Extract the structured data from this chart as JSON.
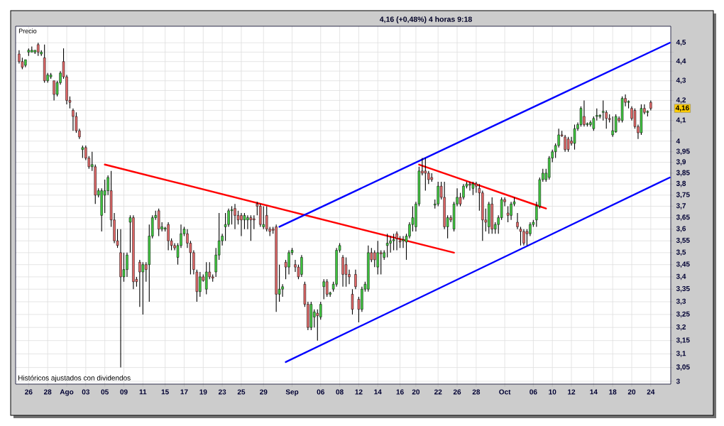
{
  "chart_data": {
    "type": "candlestick",
    "title": "4,16 (+0,48%)  4 horas  9:18",
    "ylabel": "Precio",
    "annotations": [
      "4,16",
      "Históricos ajustados con dividendos"
    ],
    "log": "y",
    "grid": true,
    "categories": [
      null,
      null,
      null,
      "26",
      null,
      null,
      null,
      null,
      null,
      "28",
      null,
      null,
      null,
      null,
      null,
      "Ago",
      null,
      null,
      null,
      null,
      null,
      "03",
      null,
      null,
      null,
      null,
      null,
      "05",
      null,
      null,
      null,
      null,
      null,
      "09",
      null,
      null,
      null,
      null,
      null,
      "11",
      null,
      null,
      null,
      null,
      null,
      null,
      "15",
      null,
      null,
      null,
      null,
      null,
      "17",
      null,
      null,
      null,
      null,
      null,
      "19",
      null,
      null,
      null,
      null,
      null,
      "23",
      null,
      null,
      null,
      null,
      null,
      "25",
      null,
      null,
      null,
      null,
      null,
      null,
      "29",
      null,
      null,
      null,
      null,
      null,
      null,
      null,
      null,
      "Sep",
      null,
      null,
      null,
      null,
      null,
      null,
      null,
      null,
      "06",
      null,
      null,
      null,
      null,
      null,
      "08",
      null,
      null,
      null,
      null,
      null,
      "12",
      null,
      null,
      null,
      null,
      null,
      "14",
      null,
      null,
      null,
      null,
      null,
      null,
      "16",
      null,
      null,
      null,
      null,
      "20",
      null,
      null,
      null,
      null,
      null,
      null,
      "22",
      null,
      null,
      null,
      null,
      null,
      "26",
      null,
      null,
      null,
      null,
      null,
      "28",
      null,
      null,
      null,
      null,
      null,
      null,
      null,
      null,
      "Oct",
      null,
      null,
      null,
      null,
      null,
      null,
      null,
      null,
      "06",
      null,
      null,
      null,
      null,
      null,
      "10",
      null,
      null,
      null,
      null,
      null,
      "12",
      null,
      null,
      null,
      null,
      null,
      null,
      "14",
      null,
      null,
      null,
      null,
      null,
      "18",
      null,
      null,
      null,
      null,
      null,
      "20",
      null,
      null,
      null,
      null,
      null,
      "24",
      null,
      null,
      null,
      null,
      null,
      null
    ],
    "ylim": [
      2.99,
      4.59
    ],
    "yticks": [
      3,
      {
        "value": 3.05,
        "label": "3,05"
      },
      {
        "value": 3.1,
        "label": "3,1"
      },
      {
        "value": 3.15,
        "label": "3,15"
      },
      {
        "value": 3.2,
        "label": "3,2"
      },
      {
        "value": 3.25,
        "label": "3,25"
      },
      {
        "value": 3.3,
        "label": "3,3"
      },
      {
        "value": 3.35,
        "label": "3,35"
      },
      {
        "value": 3.4,
        "label": "3,4"
      },
      {
        "value": 3.45,
        "label": "3,45"
      },
      {
        "value": 3.5,
        "label": "3,5"
      },
      {
        "value": 3.55,
        "label": "3,55"
      },
      {
        "value": 3.6,
        "label": "3,6"
      },
      {
        "value": 3.65,
        "label": "3,65"
      },
      {
        "value": 3.7,
        "label": "3,7"
      },
      {
        "value": 3.75,
        "label": "3,75"
      },
      {
        "value": 3.8,
        "label": "3,8"
      },
      {
        "value": 3.85,
        "label": "3,85"
      },
      {
        "value": 3.9,
        "label": "3,9"
      },
      {
        "value": 3.95,
        "label": "3,95"
      },
      4,
      {
        "value": 4.05,
        "label": null
      },
      {
        "value": 4.1,
        "label": "4,1"
      },
      {
        "value": 4.15,
        "label": null
      },
      {
        "value": 4.2,
        "label": "4,2"
      },
      {
        "value": 4.25,
        "label": null
      },
      {
        "value": 4.3,
        "label": "4,3"
      },
      {
        "value": 4.35,
        "label": null
      },
      {
        "value": 4.4,
        "label": "4,4"
      },
      {
        "value": 4.45,
        "label": null
      },
      {
        "value": 4.5,
        "label": "4,5"
      }
    ],
    "ohlc": [
      [
        4.44,
        4.46,
        4.39,
        4.4
      ],
      [
        4.4,
        4.42,
        4.36,
        4.37
      ],
      [
        4.38,
        4.41,
        4.37,
        4.41
      ],
      [
        4.45,
        4.47,
        4.43,
        4.46
      ],
      [
        4.45,
        4.48,
        4.45,
        4.46
      ],
      [
        4.45,
        4.46,
        4.44,
        4.46
      ],
      [
        4.49,
        4.5,
        4.43,
        4.45
      ],
      [
        4.44,
        4.46,
        4.43,
        4.45
      ],
      [
        4.42,
        4.49,
        4.29,
        4.3
      ],
      [
        4.3,
        4.34,
        4.29,
        4.33
      ],
      [
        4.32,
        4.34,
        4.31,
        4.33
      ],
      [
        4.3,
        4.3,
        4.2,
        4.23
      ],
      [
        4.23,
        4.3,
        4.22,
        4.29
      ],
      [
        4.29,
        4.35,
        4.28,
        4.34
      ],
      [
        4.4,
        4.47,
        4.31,
        4.32
      ],
      [
        4.32,
        4.33,
        4.18,
        4.2
      ],
      [
        4.2,
        4.22,
        4.16,
        4.19
      ],
      [
        4.15,
        4.16,
        4.05,
        4.12
      ],
      [
        4.12,
        4.14,
        4.04,
        4.05
      ],
      [
        4.05,
        4.06,
        4.01,
        4.02
      ],
      [
        3.96,
        3.98,
        3.92,
        3.97
      ],
      [
        3.97,
        3.98,
        3.91,
        3.92
      ],
      [
        3.92,
        3.93,
        3.87,
        3.88
      ],
      [
        3.88,
        3.95,
        3.86,
        3.89
      ],
      [
        3.88,
        3.89,
        3.71,
        3.75
      ],
      [
        3.75,
        3.78,
        3.74,
        3.77
      ],
      [
        3.66,
        3.78,
        3.59,
        3.77
      ],
      [
        3.75,
        3.82,
        3.67,
        3.77
      ],
      [
        3.77,
        3.84,
        3.75,
        3.83
      ],
      [
        3.77,
        3.86,
        3.61,
        3.64
      ],
      [
        3.64,
        3.67,
        3.54,
        3.55
      ],
      [
        3.55,
        3.6,
        3.52,
        3.53
      ],
      [
        3.5,
        3.6,
        3.05,
        3.4
      ],
      [
        3.4,
        3.5,
        3.38,
        3.43
      ],
      [
        3.43,
        3.5,
        3.4,
        3.49
      ],
      [
        3.63,
        3.66,
        3.5,
        3.65
      ],
      [
        3.65,
        3.66,
        3.35,
        3.38
      ],
      [
        3.39,
        3.4,
        3.36,
        3.38
      ],
      [
        3.46,
        3.47,
        3.28,
        3.42
      ],
      [
        3.42,
        3.46,
        3.25,
        3.45
      ],
      [
        3.45,
        3.46,
        3.38,
        3.43
      ],
      [
        3.45,
        3.62,
        3.3,
        3.57
      ],
      [
        3.57,
        3.66,
        3.56,
        3.65
      ],
      [
        3.65,
        3.68,
        3.64,
        3.66
      ],
      [
        3.68,
        3.69,
        3.57,
        3.6
      ],
      [
        3.6,
        3.63,
        3.59,
        3.61
      ],
      [
        3.6,
        3.61,
        3.59,
        3.605
      ],
      [
        3.62,
        3.63,
        3.51,
        3.55
      ],
      [
        3.55,
        3.56,
        3.51,
        3.53
      ],
      [
        3.53,
        3.54,
        3.51,
        3.52
      ],
      [
        3.48,
        3.54,
        3.45,
        3.53
      ],
      [
        3.53,
        3.62,
        3.52,
        3.58
      ],
      [
        3.58,
        3.61,
        3.57,
        3.6
      ],
      [
        3.58,
        3.6,
        3.52,
        3.54
      ],
      [
        3.54,
        3.55,
        3.41,
        3.5
      ],
      [
        3.5,
        3.51,
        3.41,
        3.43
      ],
      [
        3.42,
        3.43,
        3.3,
        3.34
      ],
      [
        3.34,
        3.42,
        3.32,
        3.4
      ],
      [
        3.4,
        3.41,
        3.38,
        3.385
      ],
      [
        3.35,
        3.46,
        3.33,
        3.42
      ],
      [
        3.42,
        3.46,
        3.39,
        3.4
      ],
      [
        3.4,
        3.41,
        3.38,
        3.395
      ],
      [
        3.42,
        3.52,
        3.4,
        3.49
      ],
      [
        3.49,
        3.67,
        3.47,
        3.55
      ],
      [
        3.55,
        3.58,
        3.53,
        3.57
      ],
      [
        3.61,
        3.67,
        3.55,
        3.62
      ],
      [
        3.62,
        3.69,
        3.61,
        3.68
      ],
      [
        3.68,
        3.7,
        3.62,
        3.685
      ],
      [
        3.69,
        3.71,
        3.6,
        3.66
      ],
      [
        3.66,
        3.68,
        3.62,
        3.64
      ],
      [
        3.66,
        3.67,
        3.57,
        3.64
      ],
      [
        3.64,
        3.67,
        3.6,
        3.66
      ],
      [
        3.64,
        3.66,
        3.6,
        3.65
      ],
      [
        3.65,
        3.66,
        3.55,
        3.64
      ],
      [
        3.645,
        3.66,
        3.6,
        3.64
      ],
      [
        3.71,
        3.72,
        3.66,
        3.7
      ],
      [
        3.7,
        3.71,
        3.61,
        3.62
      ],
      [
        3.61,
        3.7,
        3.6,
        3.62
      ],
      [
        3.66,
        3.7,
        3.59,
        3.6
      ],
      [
        3.6,
        3.61,
        3.57,
        3.59
      ],
      [
        3.6,
        3.61,
        3.58,
        3.595
      ],
      [
        3.61,
        3.62,
        3.26,
        3.33
      ],
      [
        3.33,
        3.45,
        3.3,
        3.35
      ],
      [
        3.35,
        3.37,
        3.32,
        3.36
      ],
      [
        3.46,
        3.47,
        3.39,
        3.44
      ],
      [
        3.44,
        3.51,
        3.41,
        3.5
      ],
      [
        3.5,
        3.52,
        3.49,
        3.51
      ],
      [
        3.45,
        3.47,
        3.42,
        3.44
      ],
      [
        3.44,
        3.45,
        3.39,
        3.4
      ],
      [
        3.41,
        3.49,
        3.4,
        3.48
      ],
      [
        3.37,
        3.38,
        3.28,
        3.29
      ],
      [
        3.29,
        3.3,
        3.19,
        3.2
      ],
      [
        3.2,
        3.3,
        3.19,
        3.29
      ],
      [
        3.24,
        3.27,
        3.2,
        3.26
      ],
      [
        3.255,
        3.27,
        3.15,
        3.245
      ],
      [
        3.24,
        3.3,
        3.23,
        3.29
      ],
      [
        3.36,
        3.39,
        3.31,
        3.38
      ],
      [
        3.38,
        3.39,
        3.32,
        3.33
      ],
      [
        3.33,
        3.34,
        3.32,
        3.335
      ],
      [
        3.35,
        3.38,
        3.34,
        3.37
      ],
      [
        3.37,
        3.52,
        3.36,
        3.51
      ],
      [
        3.51,
        3.54,
        3.5,
        3.53
      ],
      [
        3.48,
        3.49,
        3.36,
        3.41
      ],
      [
        3.45,
        3.48,
        3.36,
        3.41
      ],
      [
        3.41,
        3.43,
        3.37,
        3.4
      ],
      [
        3.33,
        3.35,
        3.25,
        3.27
      ],
      [
        3.41,
        3.43,
        3.35,
        3.36
      ],
      [
        3.31,
        3.32,
        3.22,
        3.27
      ],
      [
        3.27,
        3.36,
        3.26,
        3.35
      ],
      [
        3.35,
        3.38,
        3.34,
        3.37
      ],
      [
        3.35,
        3.53,
        3.34,
        3.5
      ],
      [
        3.5,
        3.52,
        3.46,
        3.47
      ],
      [
        3.5,
        3.51,
        3.44,
        3.47
      ],
      [
        3.44,
        3.55,
        3.41,
        3.5
      ],
      [
        3.5,
        3.51,
        3.41,
        3.495
      ],
      [
        3.48,
        3.51,
        3.47,
        3.5
      ],
      [
        3.53,
        3.58,
        3.48,
        3.54
      ],
      [
        3.54,
        3.57,
        3.5,
        3.55
      ],
      [
        3.55,
        3.58,
        3.51,
        3.555
      ],
      [
        3.58,
        3.59,
        3.51,
        3.56
      ],
      [
        3.55,
        3.57,
        3.52,
        3.545
      ],
      [
        3.55,
        3.57,
        3.52,
        3.555
      ],
      [
        3.545,
        3.58,
        3.47,
        3.57
      ],
      [
        3.57,
        3.63,
        3.56,
        3.62
      ],
      [
        3.62,
        3.7,
        3.59,
        3.65
      ],
      [
        3.61,
        3.72,
        3.59,
        3.71
      ],
      [
        3.71,
        3.88,
        3.7,
        3.86
      ],
      [
        3.86,
        3.92,
        3.84,
        3.85
      ],
      [
        3.86,
        3.92,
        3.77,
        3.85
      ],
      [
        3.85,
        3.86,
        3.8,
        3.82
      ],
      [
        3.83,
        3.85,
        3.81,
        3.82
      ],
      [
        3.705,
        3.73,
        3.69,
        3.71
      ],
      [
        3.71,
        3.81,
        3.7,
        3.79
      ],
      [
        3.79,
        3.81,
        3.73,
        3.74
      ],
      [
        3.74,
        3.81,
        3.6,
        3.61
      ],
      [
        3.61,
        3.66,
        3.56,
        3.65
      ],
      [
        3.65,
        3.66,
        3.63,
        3.64
      ],
      [
        3.6,
        3.72,
        3.59,
        3.71
      ],
      [
        3.71,
        3.78,
        3.7,
        3.74
      ],
      [
        3.74,
        3.76,
        3.7,
        3.71
      ],
      [
        3.74,
        3.8,
        3.73,
        3.79
      ],
      [
        3.79,
        3.81,
        3.78,
        3.8
      ],
      [
        3.8,
        3.81,
        3.77,
        3.795
      ],
      [
        3.78,
        3.81,
        3.75,
        3.8
      ],
      [
        3.8,
        3.81,
        3.76,
        3.79
      ],
      [
        3.78,
        3.8,
        3.68,
        3.76
      ],
      [
        3.76,
        3.77,
        3.55,
        3.64
      ],
      [
        3.64,
        3.69,
        3.59,
        3.63
      ],
      [
        3.61,
        3.72,
        3.58,
        3.71
      ],
      [
        3.71,
        3.74,
        3.58,
        3.6
      ],
      [
        3.6,
        3.63,
        3.58,
        3.62
      ],
      [
        3.62,
        3.66,
        3.58,
        3.65
      ],
      [
        3.65,
        3.74,
        3.64,
        3.73
      ],
      [
        3.73,
        3.74,
        3.7,
        3.72
      ],
      [
        3.67,
        3.7,
        3.63,
        3.66
      ],
      [
        3.66,
        3.72,
        3.64,
        3.71
      ],
      [
        3.71,
        3.74,
        3.7,
        3.72
      ],
      [
        3.63,
        3.67,
        3.6,
        3.61
      ],
      [
        3.6,
        3.61,
        3.53,
        3.59
      ],
      [
        3.59,
        3.6,
        3.53,
        3.54
      ],
      [
        3.59,
        3.6,
        3.53,
        3.58
      ],
      [
        3.58,
        3.63,
        3.57,
        3.62
      ],
      [
        3.62,
        3.64,
        3.61,
        3.63
      ],
      [
        3.64,
        3.72,
        3.61,
        3.7
      ],
      [
        3.7,
        3.83,
        3.69,
        3.82
      ],
      [
        3.82,
        3.87,
        3.81,
        3.85
      ],
      [
        3.82,
        3.87,
        3.81,
        3.85
      ],
      [
        3.83,
        3.93,
        3.82,
        3.92
      ],
      [
        3.92,
        3.96,
        3.9,
        3.95
      ],
      [
        3.95,
        3.99,
        3.92,
        3.98
      ],
      [
        3.98,
        4.06,
        3.97,
        4.03
      ],
      [
        4.03,
        4.05,
        4.02,
        4.025
      ],
      [
        4.02,
        4.03,
        3.95,
        3.96
      ],
      [
        4.01,
        4.02,
        3.95,
        3.96
      ],
      [
        4.0,
        4.02,
        3.98,
        3.99
      ],
      [
        3.99,
        4.08,
        3.96,
        4.06
      ],
      [
        4.06,
        4.09,
        4.05,
        4.08
      ],
      [
        4.08,
        4.17,
        4.07,
        4.16
      ],
      [
        4.12,
        4.2,
        4.07,
        4.08
      ],
      [
        4.08,
        4.09,
        4.07,
        4.085
      ],
      [
        4.08,
        4.1,
        4.07,
        4.09
      ],
      [
        4.06,
        4.12,
        4.05,
        4.11
      ],
      [
        4.12,
        4.16,
        4.1,
        4.125
      ],
      [
        4.12,
        4.13,
        4.11,
        4.125
      ],
      [
        4.14,
        4.2,
        4.1,
        4.145
      ],
      [
        4.14,
        4.15,
        4.06,
        4.11
      ],
      [
        4.11,
        4.13,
        4.09,
        4.105
      ],
      [
        4.03,
        4.12,
        4.02,
        4.05
      ],
      [
        4.045,
        4.13,
        4.04,
        4.12
      ],
      [
        4.11,
        4.12,
        4.09,
        4.1
      ],
      [
        4.1,
        4.22,
        4.09,
        4.21
      ],
      [
        4.21,
        4.23,
        4.17,
        4.19
      ],
      [
        4.19,
        4.2,
        4.16,
        4.195
      ],
      [
        4.16,
        4.17,
        4.1,
        4.11
      ],
      [
        4.15,
        4.16,
        4.06,
        4.07
      ],
      [
        4.07,
        4.08,
        4.01,
        4.04
      ],
      [
        4.04,
        4.18,
        4.03,
        4.16
      ],
      [
        4.16,
        4.18,
        4.13,
        4.14
      ],
      [
        4.14,
        4.15,
        4.12,
        4.145
      ],
      [
        4.19,
        4.2,
        4.15,
        4.16
      ],
      null,
      null,
      null,
      null,
      null,
      null
    ],
    "colors": [
      "#e06868",
      "#e06868",
      "#40c840",
      "#40c840",
      "#40c840",
      "#40c840",
      "#e06868",
      "#40c840",
      "#e06868",
      "#40c840",
      "#40c840",
      "#e06868",
      "#40c840",
      "#40c840",
      "#e06868",
      "#e06868",
      "#e06868",
      "#e06868",
      "#e06868",
      "#e06868",
      "#40c840",
      "#e06868",
      "#e06868",
      "#40c840",
      "#e06868",
      "#40c840",
      "#40c840",
      "#40c840",
      "#40c840",
      "#e06868",
      "#e06868",
      "#e06868",
      "#e06868",
      "#40c840",
      "#40c840",
      "#40c840",
      "#e06868",
      "#e06868",
      "#e06868",
      "#40c840",
      "#e06868",
      "#40c840",
      "#40c840",
      "#40c840",
      "#e06868",
      "#40c840",
      "#40c840",
      "#e06868",
      "#e06868",
      "#e06868",
      "#40c840",
      "#40c840",
      "#40c840",
      "#e06868",
      "#e06868",
      "#e06868",
      "#e06868",
      "#40c840",
      "#e06868",
      "#40c840",
      "#e06868",
      "#e06868",
      "#40c840",
      "#40c840",
      "#40c840",
      "#40c840",
      "#40c840",
      "#40c840",
      "#e06868",
      "#e06868",
      "#e06868",
      "#40c840",
      "#40c840",
      "#e06868",
      "#e06868",
      "#e06868",
      "#e06868",
      "#40c840",
      "#e06868",
      "#e06868",
      "#e06868",
      "#e06868",
      "#40c840",
      "#40c840",
      "#e06868",
      "#40c840",
      "#40c840",
      "#e06868",
      "#e06868",
      "#40c840",
      "#e06868",
      "#e06868",
      "#40c840",
      "#40c840",
      "#e06868",
      "#40c840",
      "#40c840",
      "#e06868",
      "#40c840",
      "#40c840",
      "#40c840",
      "#40c840",
      "#e06868",
      "#e06868",
      "#e06868",
      "#e06868",
      "#e06868",
      "#e06868",
      "#40c840",
      "#40c840",
      "#40c840",
      "#e06868",
      "#e06868",
      "#40c840",
      "#e06868",
      "#40c840",
      "#40c840",
      "#40c840",
      "#40c840",
      "#e06868",
      "#e06868",
      "#40c840",
      "#40c840",
      "#40c840",
      "#40c840",
      "#40c840",
      "#40c840",
      "#e06868",
      "#e06868",
      "#e06868",
      "#e06868",
      "#40c840",
      "#40c840",
      "#e06868",
      "#e06868",
      "#40c840",
      "#e06868",
      "#40c840",
      "#40c840",
      "#e06868",
      "#40c840",
      "#40c840",
      "#e06868",
      "#40c840",
      "#e06868",
      "#e06868",
      "#e06868",
      "#e06868",
      "#40c840",
      "#e06868",
      "#40c840",
      "#40c840",
      "#40c840",
      "#e06868",
      "#e06868",
      "#40c840",
      "#40c840",
      "#e06868",
      "#e06868",
      "#e06868",
      "#e06868",
      "#40c840",
      "#40c840",
      "#40c840",
      "#40c840",
      "#40c840",
      "#40c840",
      "#40c840",
      "#40c840",
      "#40c840",
      "#40c840",
      "#e06868",
      "#e06868",
      "#e06868",
      "#e06868",
      "#40c840",
      "#40c840",
      "#40c840",
      "#e06868",
      "#40c840",
      "#40c840",
      "#40c840",
      "#40c840",
      "#40c840",
      "#40c840",
      "#e06868",
      "#e06868",
      "#40c840",
      "#40c840",
      "#e06868",
      "#40c840",
      "#e06868",
      "#40c840",
      "#e06868",
      "#e06868",
      "#e06868",
      "#40c840",
      "#e06868",
      "#40c840",
      "#e06868",
      null,
      null,
      null,
      null,
      null,
      null
    ],
    "series": [
      {
        "type": "line",
        "color": "#ff0000",
        "values": [
          null,
          null,
          null,
          null,
          null,
          null,
          null,
          null,
          null,
          null,
          null,
          null,
          null,
          null,
          null,
          null,
          null,
          null,
          null,
          null,
          null,
          null,
          null,
          null,
          null,
          null,
          null,
          3.89,
          null,
          null,
          null,
          null,
          null,
          null,
          null,
          null,
          null,
          null,
          null,
          null,
          null,
          null,
          null,
          null,
          null,
          null,
          null,
          null,
          null,
          null,
          null,
          null,
          null,
          null,
          null,
          null,
          null,
          null,
          null,
          null,
          null,
          null,
          null,
          null,
          null,
          null,
          null,
          null,
          null,
          null,
          null,
          null,
          null,
          null,
          null,
          null,
          null,
          null,
          null,
          null,
          null,
          null,
          null,
          null,
          null,
          null,
          null,
          null,
          null,
          null,
          null,
          null,
          null,
          null,
          null,
          null,
          null,
          null,
          null,
          null,
          null,
          null,
          null,
          null,
          null,
          null,
          null,
          null,
          null,
          null,
          null,
          null,
          null,
          null,
          null,
          null,
          null,
          null,
          null,
          null,
          null,
          null,
          null,
          null,
          null,
          null,
          null,
          null,
          null,
          null,
          null,
          null,
          null,
          null,
          null,
          null,
          null,
          3.5,
          null,
          null,
          null,
          null,
          null,
          null,
          null,
          null,
          null,
          null,
          null,
          null,
          null,
          null,
          null,
          null,
          null,
          null,
          null,
          null,
          null,
          null,
          null,
          null,
          null,
          null,
          null,
          null,
          null,
          null,
          null,
          null,
          null,
          null,
          null,
          null,
          null,
          null,
          null,
          null,
          null,
          null,
          null,
          null,
          null,
          null,
          null,
          null,
          null,
          null,
          null,
          null,
          null,
          null,
          null,
          null,
          null,
          null,
          null,
          null,
          null,
          null,
          null,
          null,
          null,
          null,
          null,
          null
        ]
      },
      {
        "type": "line",
        "color": "#ff0000",
        "values": [
          null,
          null,
          null,
          null,
          null,
          null,
          null,
          null,
          null,
          null,
          null,
          null,
          null,
          null,
          null,
          null,
          null,
          null,
          null,
          null,
          null,
          null,
          null,
          null,
          null,
          null,
          null,
          null,
          null,
          null,
          null,
          null,
          null,
          null,
          null,
          null,
          null,
          null,
          null,
          null,
          null,
          null,
          null,
          null,
          null,
          null,
          null,
          null,
          null,
          null,
          null,
          null,
          null,
          null,
          null,
          null,
          null,
          null,
          null,
          null,
          null,
          null,
          null,
          null,
          null,
          null,
          null,
          null,
          null,
          null,
          null,
          null,
          null,
          null,
          null,
          null,
          null,
          null,
          null,
          null,
          null,
          null,
          null,
          null,
          null,
          null,
          null,
          null,
          null,
          null,
          null,
          null,
          null,
          null,
          null,
          null,
          null,
          null,
          null,
          null,
          null,
          null,
          null,
          null,
          null,
          null,
          null,
          null,
          null,
          null,
          null,
          null,
          null,
          null,
          null,
          null,
          null,
          null,
          null,
          null,
          null,
          null,
          null,
          null,
          null,
          null,
          3.89,
          null,
          null,
          null,
          null,
          null,
          null,
          null,
          null,
          null,
          null,
          null,
          null,
          null,
          null,
          null,
          null,
          null,
          null,
          null,
          null,
          null,
          null,
          null,
          null,
          null,
          null,
          null,
          null,
          null,
          null,
          null,
          null,
          null,
          null,
          null,
          null,
          null,
          null,
          null,
          3.69,
          null,
          null,
          null,
          null,
          null,
          null,
          null,
          null,
          null,
          null,
          null,
          null,
          null,
          null,
          null,
          null,
          null,
          null,
          null,
          null,
          null,
          null,
          null,
          null,
          null,
          null,
          null,
          null,
          null,
          null,
          null,
          null,
          null,
          null,
          null,
          null,
          null,
          null,
          null
        ]
      },
      {
        "type": "line",
        "color": "#0000ff",
        "values": [
          null,
          null,
          null,
          null,
          null,
          null,
          null,
          null,
          null,
          null,
          null,
          null,
          null,
          null,
          null,
          null,
          null,
          null,
          null,
          null,
          null,
          null,
          null,
          null,
          null,
          null,
          null,
          null,
          null,
          null,
          null,
          null,
          null,
          null,
          null,
          null,
          null,
          null,
          null,
          null,
          null,
          null,
          null,
          null,
          null,
          null,
          null,
          null,
          null,
          null,
          null,
          null,
          null,
          null,
          null,
          null,
          null,
          null,
          null,
          null,
          null,
          null,
          null,
          null,
          null,
          null,
          null,
          null,
          null,
          null,
          null,
          null,
          null,
          null,
          null,
          null,
          null,
          null,
          null,
          null,
          null,
          null,
          3.61,
          null,
          null,
          null,
          null,
          null,
          null,
          null,
          null,
          null,
          null,
          null,
          null,
          null,
          null,
          null,
          null,
          null,
          null,
          null,
          null,
          null,
          null,
          null,
          null,
          null,
          null,
          null,
          null,
          null,
          null,
          null,
          null,
          null,
          null,
          null,
          null,
          null,
          null,
          null,
          null,
          null,
          null,
          null,
          null,
          null,
          null,
          null,
          null,
          null,
          null,
          null,
          null,
          null,
          null,
          null,
          null,
          null,
          null,
          null,
          null,
          null,
          null,
          null,
          null,
          null,
          null,
          null,
          null,
          null,
          null,
          null,
          null,
          null,
          null,
          null,
          null,
          null,
          null,
          null,
          null,
          null,
          null,
          null,
          null,
          null,
          null,
          null,
          null,
          null,
          null,
          null,
          null,
          null,
          null,
          null,
          null,
          null,
          null,
          null,
          null,
          null,
          null,
          null,
          null,
          null,
          null,
          null,
          null,
          null,
          null,
          null,
          null,
          null,
          null,
          null,
          null,
          null,
          null,
          null,
          null,
          null,
          null,
          4.5
        ]
      },
      {
        "type": "line",
        "color": "#0000ff",
        "values": [
          null,
          null,
          null,
          null,
          null,
          null,
          null,
          null,
          null,
          null,
          null,
          null,
          null,
          null,
          null,
          null,
          null,
          null,
          null,
          null,
          null,
          null,
          null,
          null,
          null,
          null,
          null,
          null,
          null,
          null,
          null,
          null,
          null,
          null,
          null,
          null,
          null,
          null,
          null,
          null,
          null,
          null,
          null,
          null,
          null,
          null,
          null,
          null,
          null,
          null,
          null,
          null,
          null,
          null,
          null,
          null,
          null,
          null,
          null,
          null,
          null,
          null,
          null,
          null,
          null,
          null,
          null,
          null,
          null,
          null,
          null,
          null,
          null,
          null,
          null,
          null,
          null,
          null,
          null,
          null,
          null,
          null,
          null,
          null,
          3.07,
          null,
          null,
          null,
          null,
          null,
          null,
          null,
          null,
          null,
          null,
          null,
          null,
          null,
          null,
          null,
          null,
          null,
          null,
          null,
          null,
          null,
          null,
          null,
          null,
          null,
          null,
          null,
          null,
          null,
          null,
          null,
          null,
          null,
          null,
          null,
          null,
          null,
          null,
          null,
          null,
          null,
          null,
          null,
          null,
          null,
          null,
          null,
          null,
          null,
          null,
          null,
          null,
          null,
          null,
          null,
          null,
          null,
          null,
          null,
          null,
          null,
          null,
          null,
          null,
          null,
          null,
          null,
          null,
          null,
          null,
          null,
          null,
          null,
          null,
          null,
          null,
          null,
          null,
          null,
          null,
          null,
          null,
          null,
          null,
          null,
          null,
          null,
          null,
          null,
          null,
          null,
          null,
          null,
          null,
          null,
          null,
          null,
          null,
          null,
          null,
          null,
          null,
          null,
          null,
          null,
          null,
          null,
          null,
          null,
          null,
          null,
          null,
          null,
          null,
          null,
          null,
          null,
          null,
          null,
          null,
          3.83
        ]
      }
    ]
  }
}
